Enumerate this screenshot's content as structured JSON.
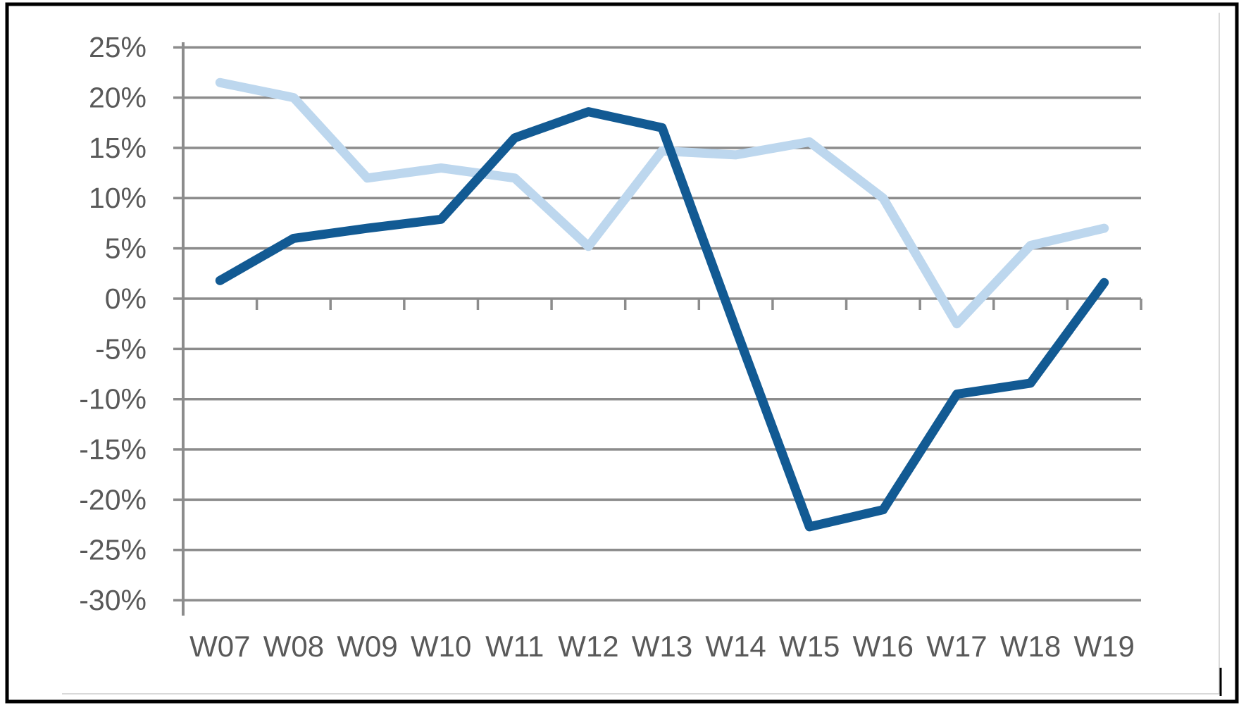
{
  "chart_data": {
    "type": "line",
    "categories": [
      "W07",
      "W08",
      "W09",
      "W10",
      "W11",
      "W12",
      "W13",
      "W14",
      "W15",
      "W16",
      "W17",
      "W18",
      "W19"
    ],
    "series": [
      {
        "name": "light-blue-series",
        "color": "#BDD7EE",
        "values": [
          21.5,
          20,
          12,
          13,
          12,
          5.2,
          14.7,
          14.3,
          15.6,
          10,
          -2.5,
          5.3,
          7
        ]
      },
      {
        "name": "dark-blue-series",
        "color": "#125A93",
        "values": [
          1.8,
          6,
          7,
          7.9,
          16,
          18.6,
          17,
          -3,
          -22.7,
          -21,
          -9.5,
          -8.4,
          1.6
        ]
      }
    ],
    "title": "",
    "xlabel": "",
    "ylabel": "",
    "y_axis": {
      "tick_labels": [
        "25%",
        "20%",
        "15%",
        "10%",
        "5%",
        "0%",
        "-5%",
        "-10%",
        "-15%",
        "-20%",
        "-25%",
        "-30%"
      ],
      "tick_values": [
        25,
        20,
        15,
        10,
        5,
        0,
        -5,
        -10,
        -15,
        -20,
        -25,
        -30
      ],
      "min": -30,
      "max": 25,
      "step": 5
    },
    "grid": true,
    "legend": false
  },
  "colors": {
    "gridline": "#8C8C8C",
    "axis": "#8C8C8C",
    "tick_label": "#595959",
    "series_light": "#BDD7EE",
    "series_dark": "#125A93",
    "background": "#FFFFFF",
    "outer_border": "#000000",
    "faint_rule": "#D9D9D9"
  }
}
